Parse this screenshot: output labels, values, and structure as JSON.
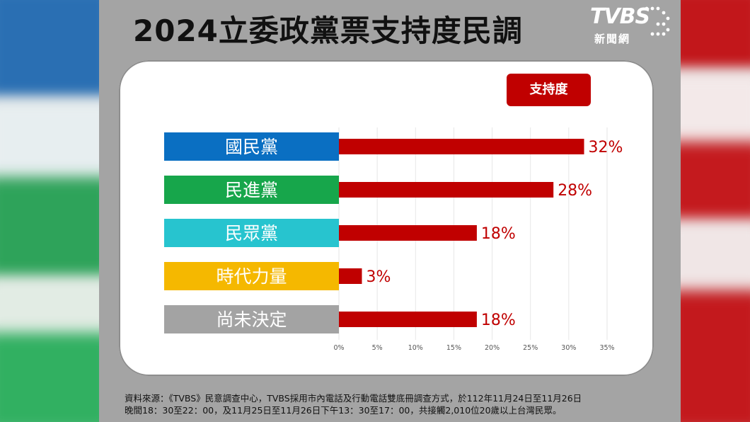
{
  "title": "2024立委政黨票支持度民調",
  "logo": {
    "brand": "TVBS",
    "sub": "新聞網",
    "icon": "tvbs-logo-icon"
  },
  "legend": {
    "label": "支持度"
  },
  "source": {
    "line1": "資料來源：《TVBS》民意調查中心，TVBS採用市內電話及行動電話雙底冊調查方式，於112年11月24日至11月26日",
    "line2": "晚間18：30至22：00，及11月25日至11月26日下午13：30至17：00，共接觸2,010位20歲以上台灣民眾。"
  },
  "colors": {
    "bar": "#c00000",
    "label_text": "#c00000"
  },
  "chart_data": {
    "type": "bar",
    "orientation": "horizontal",
    "categories": [
      "國民黨",
      "民進黨",
      "民眾黨",
      "時代力量",
      "尚未決定"
    ],
    "category_colors": [
      "#0a6fc2",
      "#17a64b",
      "#27c4cf",
      "#f5b800",
      "#a3a3a3"
    ],
    "series": [
      {
        "name": "支持度",
        "values": [
          32,
          28,
          18,
          3,
          18
        ],
        "labels": [
          "32%",
          "28%",
          "18%",
          "3%",
          "18%"
        ]
      }
    ],
    "xticks": [
      "0%",
      "5%",
      "10%",
      "15%",
      "20%",
      "25%",
      "30%",
      "35%"
    ],
    "xlim": [
      0,
      35
    ],
    "grid": true,
    "legend_position": "top-right"
  }
}
